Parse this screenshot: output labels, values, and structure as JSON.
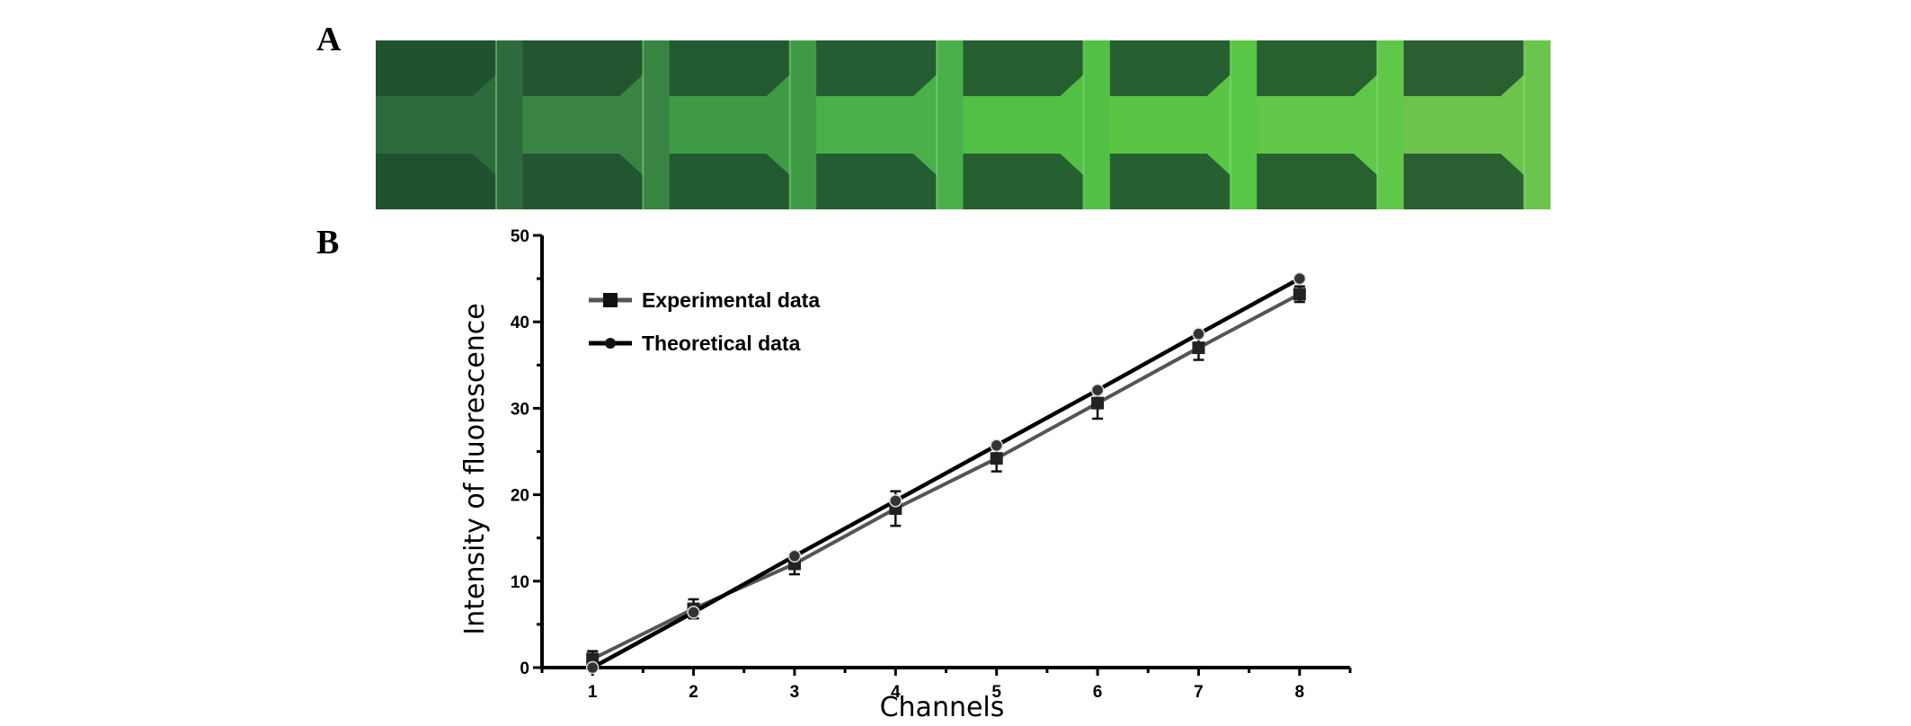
{
  "panels": {
    "a_label": "A",
    "b_label": "B"
  },
  "image_strip": {
    "channel_count": 8,
    "tints": [
      "#2d6b3c",
      "#3a8443",
      "#3f9a46",
      "#49b04a",
      "#52bf45",
      "#5ac545",
      "#60c748",
      "#6cc44c"
    ],
    "frame_color": "#1f4d2d"
  },
  "chart_data": {
    "type": "line",
    "x": [
      1,
      2,
      3,
      4,
      5,
      6,
      7,
      8
    ],
    "xlabel": "Channels",
    "ylabel": "Intensity of fluorescence",
    "xlim": [
      0.5,
      8.5
    ],
    "ylim": [
      0,
      50
    ],
    "x_ticks": [
      1,
      2,
      3,
      4,
      5,
      6,
      7,
      8
    ],
    "y_ticks": [
      0,
      10,
      20,
      30,
      40,
      50
    ],
    "grid": false,
    "legend_position": "top-left",
    "series": [
      {
        "name": "Experimental data",
        "marker": "square",
        "color": "#555555",
        "values": [
          1.0,
          6.8,
          12.0,
          18.4,
          24.2,
          30.6,
          37.0,
          43.2
        ],
        "error": [
          0.9,
          1.1,
          1.2,
          2.0,
          1.5,
          1.8,
          1.4,
          0.9
        ]
      },
      {
        "name": "Theoretical data",
        "marker": "circle",
        "color": "#000000",
        "values": [
          0.0,
          6.4,
          12.9,
          19.3,
          25.7,
          32.1,
          38.6,
          45.0
        ]
      }
    ]
  }
}
